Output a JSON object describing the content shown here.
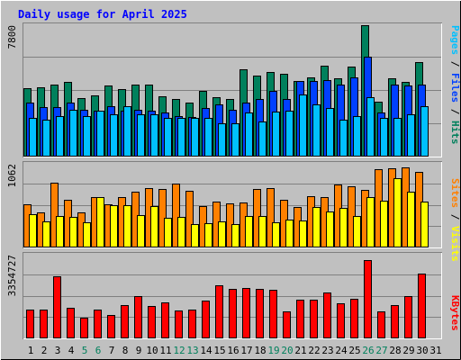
{
  "chart_data": [
    {
      "type": "bar",
      "title": "Daily usage for April 2025",
      "ymax_label": "7800",
      "right_label_parts": [
        {
          "text": "Pages",
          "color": "#00c0ff"
        },
        {
          "text": " / ",
          "color": "#000000"
        },
        {
          "text": "Files",
          "color": "#0040ff"
        },
        {
          "text": " / ",
          "color": "#000000"
        },
        {
          "text": "Hits",
          "color": "#00805c"
        }
      ],
      "categories": [
        "1",
        "2",
        "3",
        "4",
        "5",
        "6",
        "7",
        "8",
        "9",
        "10",
        "11",
        "12",
        "13",
        "14",
        "15",
        "16",
        "17",
        "18",
        "19",
        "20",
        "21",
        "22",
        "23",
        "24",
        "25",
        "26",
        "27",
        "28",
        "29",
        "30",
        "31"
      ],
      "weekend_days": [
        "5",
        "6",
        "12",
        "13",
        "19",
        "20",
        "26",
        "27"
      ],
      "ylim": [
        0,
        7800
      ],
      "series": [
        {
          "name": "Hits",
          "color": "#00805c",
          "values": [
            4050,
            4100,
            4300,
            4450,
            3450,
            3650,
            4200,
            4000,
            4250,
            4250,
            3600,
            3400,
            3200,
            3900,
            3500,
            3400,
            5200,
            4800,
            5000,
            4900,
            4500,
            4700,
            5400,
            4650,
            5350,
            7800,
            3250,
            4650,
            4450,
            5600,
            0
          ]
        },
        {
          "name": "Files",
          "color": "#0040ff",
          "values": [
            3200,
            2950,
            2950,
            3200,
            2800,
            2700,
            3000,
            2700,
            2800,
            2700,
            2600,
            2400,
            2350,
            2900,
            3100,
            2800,
            3200,
            3400,
            3900,
            3400,
            4500,
            4500,
            4550,
            4300,
            4700,
            5950,
            2600,
            4250,
            4200,
            4250,
            0
          ]
        },
        {
          "name": "Pages",
          "color": "#00c0ff",
          "values": [
            2300,
            2200,
            2400,
            2800,
            2400,
            2700,
            2500,
            3000,
            2500,
            2500,
            2300,
            2300,
            2300,
            2300,
            2000,
            2000,
            2600,
            2100,
            2650,
            2700,
            3700,
            3100,
            2900,
            2200,
            2400,
            3500,
            2300,
            2300,
            2500,
            3000,
            0
          ]
        }
      ]
    },
    {
      "type": "bar",
      "ymax_label": "1062",
      "right_label_parts": [
        {
          "text": "Sites",
          "color": "#ff8000"
        },
        {
          "text": " / ",
          "color": "#000000"
        },
        {
          "text": "Visits",
          "color": "#ffff00"
        }
      ],
      "categories": [
        "1",
        "2",
        "3",
        "4",
        "5",
        "6",
        "7",
        "8",
        "9",
        "10",
        "11",
        "12",
        "13",
        "14",
        "15",
        "16",
        "17",
        "18",
        "19",
        "20",
        "21",
        "22",
        "23",
        "24",
        "25",
        "26",
        "27",
        "28",
        "29",
        "30",
        "31"
      ],
      "ylim": [
        0,
        1062
      ],
      "series": [
        {
          "name": "Sites",
          "color": "#ff8000",
          "values": [
            545,
            450,
            825,
            600,
            445,
            640,
            550,
            645,
            710,
            755,
            740,
            815,
            720,
            520,
            580,
            560,
            575,
            740,
            750,
            605,
            515,
            650,
            635,
            800,
            775,
            730,
            995,
            1000,
            1015,
            960,
            0
          ]
        },
        {
          "name": "Visits",
          "color": "#ffff00",
          "values": [
            420,
            330,
            400,
            390,
            320,
            640,
            535,
            540,
            410,
            520,
            380,
            390,
            300,
            310,
            330,
            300,
            400,
            400,
            320,
            350,
            345,
            510,
            460,
            500,
            400,
            640,
            590,
            880,
            705,
            580,
            0
          ]
        }
      ]
    },
    {
      "type": "bar",
      "ymax_label": "3354727",
      "right_label_parts": [
        {
          "text": "KBytes",
          "color": "#ff0000"
        }
      ],
      "categories": [
        "1",
        "2",
        "3",
        "4",
        "5",
        "6",
        "7",
        "8",
        "9",
        "10",
        "11",
        "12",
        "13",
        "14",
        "15",
        "16",
        "17",
        "18",
        "19",
        "20",
        "21",
        "22",
        "23",
        "24",
        "25",
        "26",
        "27",
        "28",
        "29",
        "30",
        "31"
      ],
      "ylim": [
        0,
        3354727
      ],
      "series": [
        {
          "name": "KBytes",
          "color": "#ff0000",
          "values": [
            1150000,
            1140000,
            2480000,
            1240000,
            830000,
            1160000,
            920000,
            1320000,
            1690000,
            1290000,
            1450000,
            1130000,
            1140000,
            1510000,
            2130000,
            1970000,
            2020000,
            1990000,
            1930000,
            1080000,
            1560000,
            1560000,
            1840000,
            1420000,
            1580000,
            3140000,
            1100000,
            1330000,
            1690000,
            2600000,
            0
          ]
        }
      ]
    }
  ]
}
